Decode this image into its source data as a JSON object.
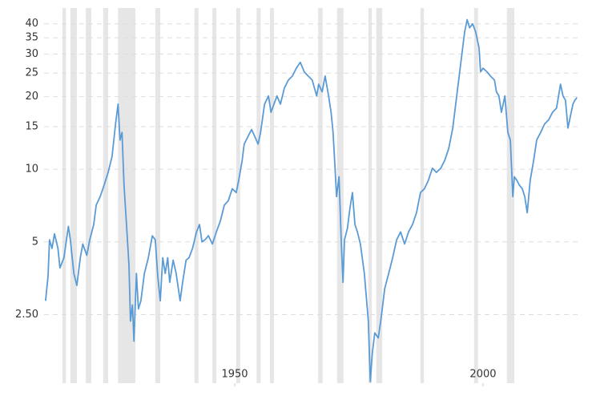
{
  "chart_data": {
    "type": "line",
    "log_y": true,
    "grid": true,
    "xlim": [
      1911.6,
      2019.2
    ],
    "xticks": [
      1950,
      2000
    ],
    "ylim": [
      1.3,
      46.5
    ],
    "yticks": [
      {
        "value": 2.5,
        "label": "2.50"
      },
      5,
      10,
      15,
      20,
      25,
      30,
      35,
      40
    ],
    "recession_color": "#e6e6e6",
    "recessions": [
      [
        1915.3,
        1916.0
      ],
      [
        1916.9,
        1918.2
      ],
      [
        1920.0,
        1921.1
      ],
      [
        1923.5,
        1924.5
      ],
      [
        1926.5,
        1930.0
      ],
      [
        1934.0,
        1935.0
      ],
      [
        1941.9,
        1942.7
      ],
      [
        1945.5,
        1946.3
      ],
      [
        1950.3,
        1951.1
      ],
      [
        1954.4,
        1955.2
      ],
      [
        1957.1,
        1957.9
      ],
      [
        1966.8,
        1967.7
      ],
      [
        1970.6,
        1971.9
      ],
      [
        1976.9,
        1977.6
      ],
      [
        1978.5,
        1979.7
      ],
      [
        1987.4,
        1988.1
      ],
      [
        1998.2,
        1999.0
      ],
      [
        2004.8,
        2006.3
      ]
    ],
    "x": [
      1911.9,
      1912.4,
      1912.7,
      1913.2,
      1913.7,
      1914.4,
      1914.8,
      1915.6,
      1916.5,
      1916.9,
      1917.6,
      1918.2,
      1918.9,
      1919.4,
      1920.2,
      1920.8,
      1921.6,
      1922.1,
      1922.9,
      1923.7,
      1924.5,
      1925.3,
      1926.0,
      1926.5,
      1926.9,
      1927.3,
      1927.7,
      1928.2,
      1928.7,
      1929.0,
      1929.4,
      1929.7,
      1930.2,
      1930.6,
      1931.1,
      1931.8,
      1932.6,
      1933.4,
      1934.0,
      1934.5,
      1935.0,
      1935.5,
      1936.0,
      1936.5,
      1936.9,
      1937.6,
      1938.2,
      1939.0,
      1939.5,
      1940.2,
      1940.8,
      1941.5,
      1942.3,
      1942.9,
      1943.4,
      1944.0,
      1944.7,
      1945.5,
      1946.3,
      1947.1,
      1947.9,
      1948.7,
      1949.5,
      1950.3,
      1950.8,
      1951.5,
      1951.9,
      1952.7,
      1953.4,
      1954.0,
      1954.7,
      1955.2,
      1956.0,
      1956.8,
      1957.3,
      1957.9,
      1958.5,
      1959.2,
      1960.0,
      1960.8,
      1961.6,
      1962.4,
      1963.2,
      1964.0,
      1964.8,
      1965.6,
      1966.5,
      1966.9,
      1967.6,
      1968.2,
      1968.9,
      1969.4,
      1969.8,
      1970.2,
      1970.5,
      1971.0,
      1971.5,
      1971.8,
      1972.1,
      1972.7,
      1973.2,
      1973.7,
      1974.2,
      1974.7,
      1975.3,
      1976.1,
      1976.9,
      1977.3,
      1977.7,
      1978.2,
      1978.9,
      1979.4,
      1980.2,
      1981.0,
      1981.8,
      1982.6,
      1983.4,
      1984.2,
      1985.0,
      1985.8,
      1986.6,
      1987.4,
      1988.2,
      1989.0,
      1989.8,
      1990.6,
      1991.5,
      1992.3,
      1993.1,
      1993.9,
      1994.7,
      1995.5,
      1996.3,
      1996.8,
      1997.3,
      1997.9,
      1998.5,
      1999.2,
      1999.5,
      2000.0,
      2000.8,
      2001.5,
      2002.3,
      2002.7,
      2003.2,
      2003.7,
      2004.4,
      2005.0,
      2005.5,
      2006.0,
      2006.3,
      2006.8,
      2007.3,
      2007.9,
      2008.4,
      2008.9,
      2009.5,
      2010.2,
      2010.8,
      2011.6,
      2012.4,
      2013.2,
      2014.0,
      2014.8,
      2015.6,
      2016.1,
      2016.6,
      2017.1,
      2017.6,
      2018.1,
      2018.5,
      2018.9
    ],
    "series": [
      {
        "color": "#5b9bd5",
        "values": [
          2.85,
          3.6,
          5.1,
          4.7,
          5.4,
          4.7,
          3.9,
          4.3,
          5.8,
          5.1,
          3.7,
          3.3,
          4.3,
          4.9,
          4.4,
          5.1,
          5.9,
          7.1,
          7.7,
          8.6,
          9.7,
          11.3,
          15.4,
          18.6,
          13.2,
          14.2,
          8.6,
          5.9,
          4.0,
          2.35,
          2.74,
          1.94,
          3.7,
          2.64,
          2.85,
          3.7,
          4.3,
          5.3,
          5.1,
          3.6,
          2.85,
          4.3,
          3.7,
          4.3,
          3.4,
          4.2,
          3.7,
          2.85,
          3.4,
          4.2,
          4.3,
          4.7,
          5.5,
          5.9,
          5.0,
          5.1,
          5.3,
          4.9,
          5.5,
          6.1,
          7.1,
          7.4,
          8.3,
          8.0,
          9.0,
          10.9,
          12.7,
          13.7,
          14.6,
          13.7,
          12.7,
          14.2,
          18.6,
          20.1,
          17.2,
          18.6,
          20.1,
          18.6,
          21.7,
          23.4,
          24.3,
          26.2,
          27.7,
          25.3,
          24.3,
          23.4,
          20.1,
          22.5,
          20.9,
          24.3,
          20.1,
          17.2,
          14.2,
          10.1,
          7.7,
          9.3,
          4.7,
          3.4,
          5.1,
          5.7,
          6.9,
          8.0,
          5.9,
          5.5,
          4.9,
          3.7,
          2.35,
          1.32,
          1.73,
          2.1,
          2.0,
          2.35,
          3.2,
          3.7,
          4.3,
          5.1,
          5.5,
          4.9,
          5.5,
          5.9,
          6.6,
          8.0,
          8.3,
          9.0,
          10.1,
          9.7,
          10.1,
          10.9,
          12.2,
          14.8,
          20.1,
          27.3,
          37.1,
          41.6,
          38.5,
          40.0,
          37.1,
          31.8,
          25.3,
          26.2,
          25.3,
          24.3,
          23.4,
          20.9,
          20.1,
          17.2,
          20.1,
          14.2,
          13.2,
          7.7,
          9.3,
          9.0,
          8.6,
          8.3,
          7.7,
          6.6,
          9.0,
          10.9,
          13.2,
          14.2,
          15.4,
          16.0,
          17.2,
          17.9,
          22.5,
          20.1,
          19.3,
          14.8,
          16.6,
          18.6,
          19.3,
          19.8
        ]
      }
    ]
  }
}
